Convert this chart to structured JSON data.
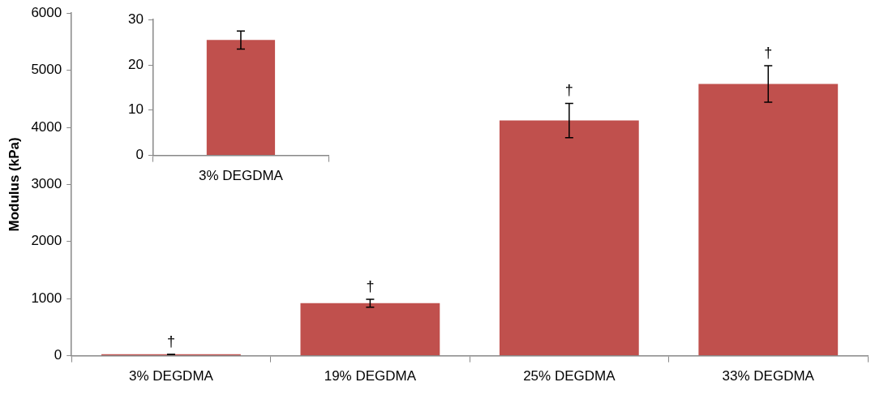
{
  "chart_data": [
    {
      "type": "bar",
      "ylabel": "Modulus (kPa)",
      "categories": [
        "3% DEGDMA",
        "19% DEGDMA",
        "25% DEGDMA",
        "33% DEGDMA"
      ],
      "values": [
        25,
        920,
        4120,
        4760
      ],
      "errors": [
        2,
        70,
        300,
        320
      ],
      "color": "#c0504d",
      "ylim": [
        0,
        6000
      ],
      "yticks": [
        0,
        1000,
        2000,
        3000,
        4000,
        5000,
        6000
      ],
      "annotations": [
        {
          "text": "†",
          "x": "3% DEGDMA",
          "y": 27
        },
        {
          "text": "†",
          "x": "19% DEGDMA",
          "y": 990
        },
        {
          "text": "†",
          "x": "25% DEGDMA",
          "y": 4420
        },
        {
          "text": "†",
          "x": "33% DEGDMA",
          "y": 5080
        }
      ]
    },
    {
      "type": "bar",
      "categories": [
        "3% DEGDMA"
      ],
      "values": [
        25.5
      ],
      "errors": [
        2
      ],
      "color": "#c0504d",
      "ylim": [
        0,
        30
      ],
      "yticks": [
        0,
        10,
        20,
        30
      ]
    }
  ]
}
